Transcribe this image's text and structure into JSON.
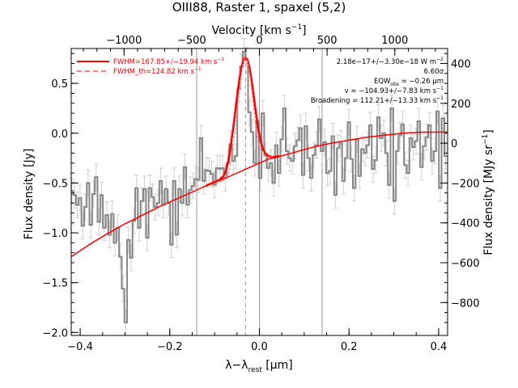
{
  "chart_data": {
    "type": "line",
    "title": "OIII88, Raster 1, spaxel (5,2)",
    "xlabel": "λ−λ",
    "xlabel_sub": "rest",
    "xlabel_unit": " [μm]",
    "ylabel": "Flux density [Jy]",
    "top_axis_label": "Velocity [km s",
    "top_axis_sup": "−1",
    "top_axis_end": "]",
    "right_axis_label": "Flux density [MJy sr",
    "right_axis_sup": "−1",
    "right_axis_end": "]",
    "xlim": [
      -0.42,
      0.42
    ],
    "ylim": [
      -2.03,
      0.85
    ],
    "right_ylim": [
      -965,
      475
    ],
    "top_xlim": [
      -1390,
      1390
    ],
    "x_ticks": [
      -0.4,
      -0.2,
      0.0,
      0.2,
      0.4
    ],
    "x_tick_labels": [
      "−0.4",
      "−0.2",
      "0.0",
      "0.2",
      "0.4"
    ],
    "y_ticks": [
      -2.0,
      -1.5,
      -1.0,
      -0.5,
      0.0,
      0.5
    ],
    "y_tick_labels": [
      "−2.0",
      "−1.5",
      "−1.0",
      "−0.5",
      "0.0",
      "0.5"
    ],
    "top_ticks": [
      -1000,
      -500,
      0,
      500,
      1000
    ],
    "top_tick_labels": [
      "−1000",
      "−500",
      "0",
      "500",
      "1000"
    ],
    "right_ticks": [
      400,
      200,
      0,
      -200,
      -400,
      -600,
      -800
    ],
    "right_tick_labels": [
      "400",
      "200",
      "0",
      "−200",
      "−400",
      "−600",
      "−800"
    ],
    "vlines_solid": [
      -0.14,
      0.0,
      0.14
    ],
    "vline_dashed": -0.031,
    "legend": [
      {
        "label": "FWHM=167.85+/−19.94 km s",
        "sup": "−1",
        "style": "solid"
      },
      {
        "label": "FWHM_th=124.82 km s",
        "sup": "−1",
        "style": "dashed"
      }
    ],
    "annotations": [
      {
        "text": "2.18e−17+/−3.30e−18 W m",
        "sup": "−2"
      },
      {
        "text": "6.60σ",
        "sup": ""
      },
      {
        "text": "EQW",
        "sub": "obs",
        "text2": " = −0.26 μm"
      },
      {
        "text": "v = −104.93+/−7.83 km s",
        "sup": "−1"
      },
      {
        "text": "Broadening = 112.21+/−13.33 km s",
        "sup": "−1"
      }
    ],
    "series": [
      {
        "name": "data",
        "color": "#888888",
        "x": [
          -0.4183,
          -0.4123,
          -0.4063,
          -0.4003,
          -0.3943,
          -0.3883,
          -0.3823,
          -0.3763,
          -0.3703,
          -0.3643,
          -0.3583,
          -0.3523,
          -0.3463,
          -0.3403,
          -0.3343,
          -0.3283,
          -0.3223,
          -0.3163,
          -0.3103,
          -0.3043,
          -0.2983,
          -0.2923,
          -0.2863,
          -0.2803,
          -0.2743,
          -0.2683,
          -0.2623,
          -0.2563,
          -0.2503,
          -0.2443,
          -0.2383,
          -0.2323,
          -0.2263,
          -0.2203,
          -0.2143,
          -0.2083,
          -0.2023,
          -0.1963,
          -0.1903,
          -0.1843,
          -0.1783,
          -0.1723,
          -0.1663,
          -0.1603,
          -0.1543,
          -0.1483,
          -0.1423,
          -0.1363,
          -0.1303,
          -0.1243,
          -0.1183,
          -0.1123,
          -0.1063,
          -0.1003,
          -0.0943,
          -0.0883,
          -0.0823,
          -0.0763,
          -0.0703,
          -0.0643,
          -0.0583,
          -0.0523,
          -0.0463,
          -0.0403,
          -0.0343,
          -0.0283,
          -0.0223,
          -0.0163,
          -0.0103,
          -0.0043,
          0.0017,
          0.0077,
          0.0137,
          0.0197,
          0.0257,
          0.0317,
          0.0377,
          0.0437,
          0.0497,
          0.0557,
          0.0617,
          0.0677,
          0.0737,
          0.0797,
          0.0857,
          0.0917,
          0.0977,
          0.1037,
          0.1097,
          0.1157,
          0.1217,
          0.1277,
          0.1337,
          0.1397,
          0.1457,
          0.1517,
          0.1577,
          0.1637,
          0.1697,
          0.1757,
          0.1817,
          0.1877,
          0.1937,
          0.1997,
          0.2057,
          0.2117,
          0.2177,
          0.2237,
          0.2297,
          0.2357,
          0.2417,
          0.2477,
          0.2537,
          0.2597,
          0.2657,
          0.2717,
          0.2777,
          0.2837,
          0.2897,
          0.2957,
          0.3017,
          0.3077,
          0.3137,
          0.3197,
          0.3257,
          0.3317,
          0.3377,
          0.3437,
          0.3497,
          0.3557,
          0.3617,
          0.3677,
          0.3737,
          0.3797,
          0.3857,
          0.3917,
          0.3977,
          0.4037,
          0.4097,
          0.4157
        ],
        "y": [
          -0.58,
          -0.62,
          -0.72,
          -0.65,
          -0.93,
          -0.74,
          -0.5,
          -0.92,
          -0.61,
          -0.44,
          -0.89,
          -0.62,
          -0.95,
          -0.82,
          -1.02,
          -0.81,
          -1.1,
          -0.95,
          -1.24,
          -1.56,
          -1.9,
          -1.07,
          -1.25,
          -0.88,
          -0.55,
          -0.95,
          -0.68,
          -0.56,
          -1.05,
          -0.55,
          -0.64,
          -0.74,
          -0.7,
          -0.48,
          -0.72,
          -0.56,
          -0.7,
          -1.12,
          -0.48,
          -1.02,
          -0.56,
          -0.7,
          -0.34,
          -0.72,
          -0.57,
          -0.53,
          -0.46,
          -0.47,
          -0.05,
          -0.48,
          -0.37,
          -0.38,
          -0.41,
          -0.52,
          -0.35,
          -0.36,
          -0.35,
          -0.45,
          -0.3,
          -0.11,
          -0.28,
          -0.23,
          0.44,
          0.67,
          0.82,
          0.73,
          0.21,
          0.01,
          -0.3,
          0.12,
          -0.45,
          0.2,
          -0.22,
          -0.35,
          -0.3,
          -0.5,
          -0.12,
          -0.4,
          -0.06,
          0.25,
          -0.18,
          -0.25,
          -0.28,
          -0.13,
          -0.07,
          0.05,
          -0.42,
          0.07,
          -0.25,
          -0.45,
          -0.22,
          -0.12,
          0.14,
          -0.18,
          -0.09,
          -0.4,
          -0.38,
          -0.03,
          -0.62,
          -0.15,
          -0.1,
          -0.48,
          -0.25,
          0.11,
          -0.26,
          -0.55,
          -0.06,
          -0.43,
          -0.16,
          -0.2,
          -0.12,
          0.08,
          -0.36,
          -0.27,
          0.16,
          -0.05,
          0.0,
          -0.2,
          -0.52,
          0.25,
          -0.68,
          -0.18,
          -0.02,
          0.09,
          -0.32,
          -0.4,
          -0.05,
          -0.14,
          -0.08,
          0.12,
          -0.34,
          -0.13,
          -0.04,
          0.08,
          -0.28,
          -0.18,
          0.22,
          -0.55,
          0.15,
          -0.23
        ],
        "error": 0.13
      },
      {
        "name": "continuum",
        "color": "#ff0000",
        "x": [
          -0.42,
          -0.38,
          -0.34,
          -0.3,
          -0.26,
          -0.22,
          -0.18,
          -0.14,
          -0.1,
          -0.08,
          -0.06,
          -0.04,
          -0.02,
          0.0,
          0.02,
          0.04,
          0.08,
          0.12,
          0.16,
          0.2,
          0.24,
          0.28,
          0.32,
          0.36,
          0.4,
          0.42
        ],
        "y": [
          -1.24,
          -1.12,
          -1.01,
          -0.91,
          -0.82,
          -0.73,
          -0.65,
          -0.57,
          -0.49,
          -0.46,
          -0.42,
          -0.38,
          -0.34,
          -0.3,
          -0.26,
          -0.24,
          -0.19,
          -0.14,
          -0.1,
          -0.07,
          -0.04,
          -0.02,
          0.0,
          0.01,
          0.01,
          0.01
        ]
      },
      {
        "name": "fit",
        "color": "#ff0000",
        "x": [
          -0.12,
          -0.1,
          -0.09,
          -0.08,
          -0.075,
          -0.07,
          -0.065,
          -0.06,
          -0.055,
          -0.05,
          -0.045,
          -0.04,
          -0.035,
          -0.031,
          -0.027,
          -0.022,
          -0.017,
          -0.012,
          -0.007,
          -0.002,
          0.003,
          0.008,
          0.013,
          0.02,
          0.03,
          0.045
        ],
        "y": [
          -0.53,
          -0.49,
          -0.47,
          -0.43,
          -0.38,
          -0.29,
          -0.16,
          0.0,
          0.18,
          0.36,
          0.53,
          0.66,
          0.74,
          0.76,
          0.74,
          0.66,
          0.52,
          0.35,
          0.18,
          0.03,
          -0.08,
          -0.16,
          -0.2,
          -0.23,
          -0.24,
          -0.23
        ]
      }
    ]
  }
}
